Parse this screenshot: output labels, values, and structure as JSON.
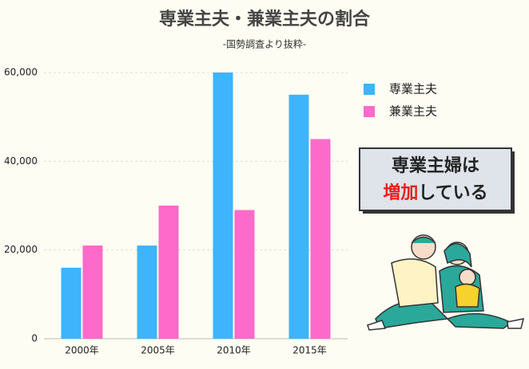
{
  "chart_data": {
    "type": "bar",
    "title": "専業主夫・兼業主夫の割合",
    "subtitle": "-国勢調査より抜粋-",
    "categories": [
      "2000年",
      "2005年",
      "2010年",
      "2015年"
    ],
    "series": [
      {
        "name": "専業主夫",
        "color": "#3db4fb",
        "values": [
          16000,
          21000,
          60000,
          55000
        ]
      },
      {
        "name": "兼業主夫",
        "color": "#fd6ac9",
        "values": [
          21000,
          30000,
          29000,
          45000
        ]
      }
    ],
    "ylim": [
      0,
      60000
    ],
    "yticks": [
      0,
      {
        "value": 20000,
        "label": "20,000"
      },
      {
        "value": 40000,
        "label": "40,000"
      },
      {
        "value": 60000,
        "label": "60,000"
      }
    ],
    "grid": true,
    "legend": "right",
    "annotation": {
      "line1": "専業主婦は",
      "highlight": "増加",
      "rest": "している"
    }
  }
}
